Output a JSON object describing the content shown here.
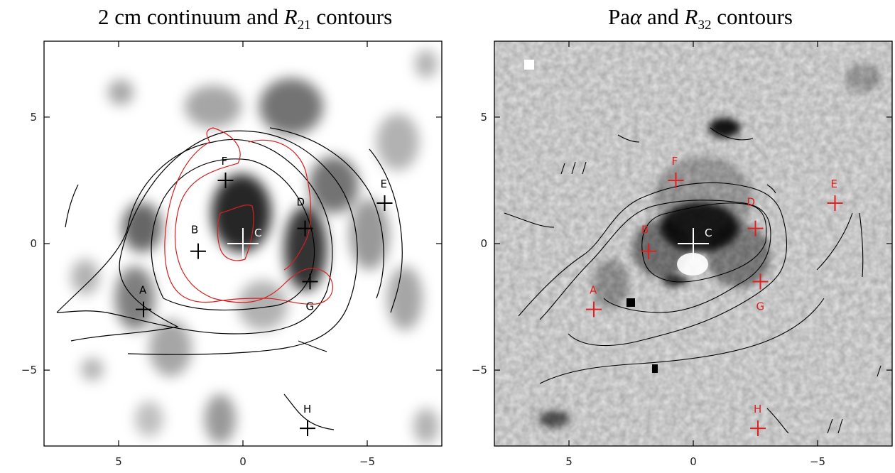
{
  "chart_data": [
    {
      "type": "contour",
      "panel": "left",
      "title_prefix": "2 cm continuum and ",
      "title_symbol": "R",
      "title_subscript": "21",
      "title_suffix": " contours",
      "xlim": [
        8,
        -8
      ],
      "ylim": [
        -8,
        8
      ],
      "x_ticks": [
        "5",
        "0",
        "−5"
      ],
      "y_ticks": [
        "5",
        "0",
        "−5"
      ],
      "x_tick_values": [
        5,
        0,
        -5
      ],
      "y_tick_values": [
        5,
        0,
        -5
      ],
      "marker_color": "#000000",
      "center_color": "#ffffff",
      "contour_color": "#000000",
      "highlight_contour_color": "#d62020",
      "markers": [
        {
          "label": "A",
          "x": 4.0,
          "y": -2.6
        },
        {
          "label": "B",
          "x": 1.8,
          "y": -0.3
        },
        {
          "label": "C",
          "x": 0.0,
          "y": 0.0
        },
        {
          "label": "D",
          "x": -2.5,
          "y": 0.6
        },
        {
          "label": "E",
          "x": -5.7,
          "y": 1.6
        },
        {
          "label": "F",
          "x": 0.7,
          "y": 2.5
        },
        {
          "label": "G",
          "x": -2.7,
          "y": -1.5
        },
        {
          "label": "H",
          "x": -2.6,
          "y": -7.3
        }
      ]
    },
    {
      "type": "contour",
      "panel": "right",
      "title_prefix": "Pa",
      "title_greek": "α",
      "title_mid": " and ",
      "title_symbol": "R",
      "title_subscript": "32",
      "title_suffix": " contours",
      "xlim": [
        8,
        -8
      ],
      "ylim": [
        -8,
        8
      ],
      "x_ticks": [
        "5",
        "0",
        "−5"
      ],
      "y_ticks": [
        "5",
        "0",
        "−5"
      ],
      "x_tick_values": [
        5,
        0,
        -5
      ],
      "y_tick_values": [
        5,
        0,
        -5
      ],
      "marker_color": "#e02020",
      "center_color": "#ffffff",
      "contour_color": "#000000",
      "markers": [
        {
          "label": "A",
          "x": 4.0,
          "y": -2.6
        },
        {
          "label": "B",
          "x": 1.8,
          "y": -0.3
        },
        {
          "label": "C",
          "x": 0.0,
          "y": 0.0
        },
        {
          "label": "D",
          "x": -2.5,
          "y": 0.6
        },
        {
          "label": "E",
          "x": -5.7,
          "y": 1.6
        },
        {
          "label": "F",
          "x": 0.7,
          "y": 2.5
        },
        {
          "label": "G",
          "x": -2.7,
          "y": -1.5
        },
        {
          "label": "H",
          "x": -2.6,
          "y": -7.3
        }
      ]
    }
  ]
}
